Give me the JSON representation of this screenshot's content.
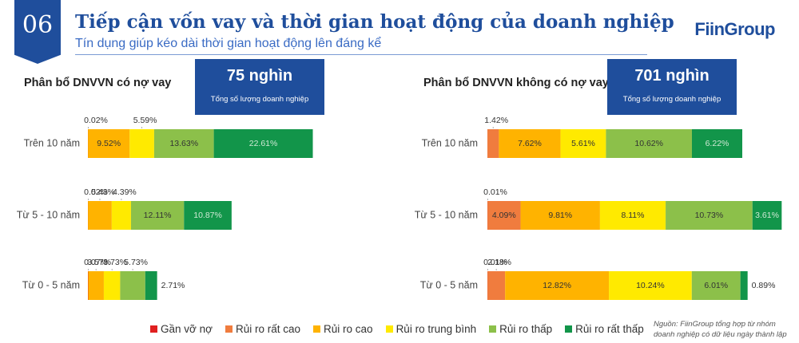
{
  "header": {
    "section_number": "06",
    "title": "Tiếp cận vốn vay và thời gian hoạt động của doanh nghiệp",
    "subtitle": "Tín dụng giúp kéo dài thời gian hoạt động lên đáng kể",
    "logo": "FiinGroup"
  },
  "panels": {
    "left": {
      "title": "Phân bổ DNVVN có nợ vay",
      "kpi_value": "75 nghìn",
      "kpi_label": "Tổng số lượng doanh nghiệp"
    },
    "right": {
      "title": "Phân bổ DNVVN không có nợ vay",
      "kpi_value": "701 nghìn",
      "kpi_label": "Tổng số lượng doanh nghiệp"
    }
  },
  "legend": {
    "items": [
      {
        "label": "Gần vỡ nợ",
        "color": "#e02020"
      },
      {
        "label": "Rủi ro rất cao",
        "color": "#f07c3e"
      },
      {
        "label": "Rủi ro cao",
        "color": "#ffb300"
      },
      {
        "label": "Rủi ro trung bình",
        "color": "#ffea00"
      },
      {
        "label": "Rủi ro thấp",
        "color": "#8cc04a"
      },
      {
        "label": "Rủi ro rất thấp",
        "color": "#12954a"
      }
    ]
  },
  "source": {
    "line1": "Nguồn: FiinGroup tổng hợp từ nhóm",
    "line2": "doanh nghiệp có dữ liệu ngày thành lập"
  },
  "chart_data": [
    {
      "type": "bar",
      "orientation": "horizontal",
      "stacked": true,
      "title": "Phân bổ DNVVN có nợ vay",
      "categories": [
        "Trên 10 năm",
        "Từ 5 - 10 năm",
        "Từ 0 - 5 năm"
      ],
      "series": [
        {
          "name": "Gần vỡ nợ",
          "values": [
            0.02,
            0.02,
            0.07
          ],
          "labels": [
            "0.02%",
            "0.02%",
            "0.07%"
          ]
        },
        {
          "name": "Rủi ro rất cao",
          "values": [
            0,
            0,
            0
          ],
          "labels": [
            "",
            "",
            ""
          ]
        },
        {
          "name": "Rủi ro cao",
          "values": [
            9.52,
            5.43,
            3.57
          ],
          "labels": [
            "9.52%",
            "5.43%",
            "3.57%"
          ]
        },
        {
          "name": "Rủi ro trung bình",
          "values": [
            5.59,
            4.39,
            3.73
          ],
          "labels": [
            "5.59%",
            "4.39%",
            "3.73%"
          ]
        },
        {
          "name": "Rủi ro thấp",
          "values": [
            13.63,
            12.11,
            5.73
          ],
          "labels": [
            "13.63%",
            "12.11%",
            "5.73%"
          ]
        },
        {
          "name": "Rủi ro rất thấp",
          "values": [
            22.61,
            10.87,
            2.71
          ],
          "labels": [
            "22.61%",
            "10.87%",
            "2.71%"
          ]
        }
      ]
    },
    {
      "type": "bar",
      "orientation": "horizontal",
      "stacked": true,
      "title": "Phân bổ DNVVN không có nợ vay",
      "categories": [
        "Trên 10 năm",
        "Từ 5 - 10 năm",
        "Từ 0 - 5 năm"
      ],
      "series": [
        {
          "name": "Gần vỡ nợ",
          "values": [
            0,
            0.01,
            0.01
          ],
          "labels": [
            "",
            "0.01%",
            "0.01%"
          ]
        },
        {
          "name": "Rủi ro rất cao",
          "values": [
            1.42,
            4.09,
            2.18
          ],
          "labels": [
            "1.42%",
            "4.09%",
            "2.18%"
          ]
        },
        {
          "name": "Rủi ro cao",
          "values": [
            7.62,
            9.81,
            12.82
          ],
          "labels": [
            "7.62%",
            "9.81%",
            "12.82%"
          ]
        },
        {
          "name": "Rủi ro trung bình",
          "values": [
            5.61,
            8.11,
            10.24
          ],
          "labels": [
            "5.61%",
            "8.11%",
            "10.24%"
          ]
        },
        {
          "name": "Rủi ro thấp",
          "values": [
            10.62,
            10.73,
            6.01
          ],
          "labels": [
            "10.62%",
            "10.73%",
            "6.01%"
          ]
        },
        {
          "name": "Rủi ro rất thấp",
          "values": [
            6.22,
            3.61,
            0.89
          ],
          "labels": [
            "6.22%",
            "3.61%",
            "0.89%"
          ]
        }
      ]
    }
  ]
}
